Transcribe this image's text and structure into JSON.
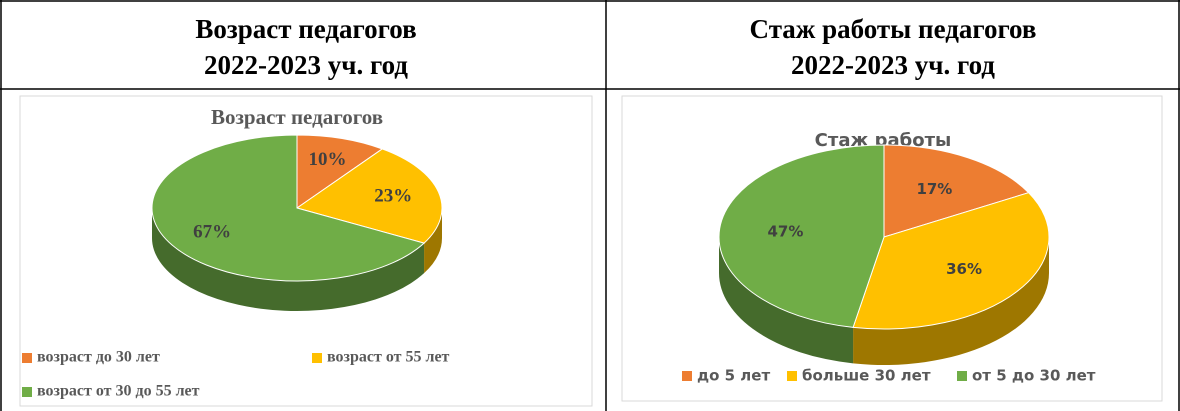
{
  "table": {
    "headers": [
      [
        "Возраст педагогов",
        "2022-2023 уч. год"
      ],
      [
        "Стаж работы педагогов",
        "2022-2023 уч. год"
      ]
    ]
  },
  "charts": [
    {
      "type": "pie",
      "title": "Возраст педагогов",
      "categories": [
        "возраст до 30 лет",
        "возраст от 55 лет",
        "возраст от 30 до 55 лет"
      ],
      "values": [
        10,
        23,
        67
      ],
      "value_labels": [
        "10%",
        "23%",
        "67%"
      ],
      "colors": [
        "#ed7d31",
        "#ffc000",
        "#70ad47"
      ]
    },
    {
      "type": "pie",
      "title": "Стаж работы",
      "categories": [
        "до 5 лет",
        "больше 30 лет",
        "от 5 до 30 лет"
      ],
      "values": [
        17,
        36,
        47
      ],
      "value_labels": [
        "17%",
        "36%",
        "47%"
      ],
      "colors": [
        "#ed7d31",
        "#ffc000",
        "#70ad47"
      ]
    }
  ]
}
